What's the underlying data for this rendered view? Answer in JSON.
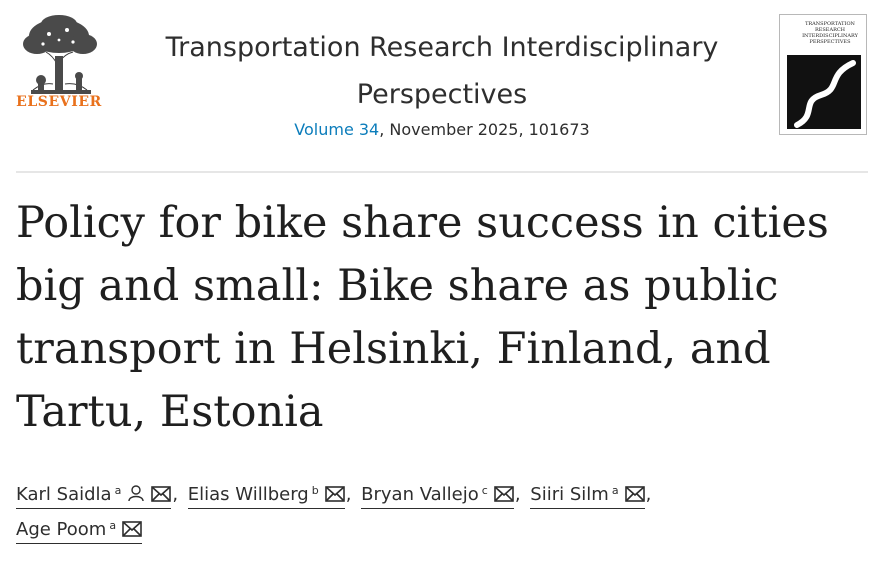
{
  "publisher": {
    "name": "ELSEVIER",
    "logo_icon": "elsevier-tree-icon",
    "brand_color": "#e9711c"
  },
  "journal": {
    "title": "Transportation Research Interdisciplinary Perspectives",
    "volume_link": "Volume 34",
    "issue_rest": ", November 2025, 101673",
    "link_color": "#0c7dbb",
    "cover": {
      "line1": "TRANSPORTATION",
      "line2": "RESEARCH",
      "line3": "INTERDISCIPLINARY",
      "line4": "PERSPECTIVES"
    }
  },
  "article": {
    "title": "Policy for bike share success in cities big and small: Bike share as public transport in Helsinki, Finland, and Tartu, Estonia"
  },
  "authors": [
    {
      "name": "Karl Saidla",
      "affiliation": "a",
      "icons": [
        "person-icon",
        "mail-icon"
      ]
    },
    {
      "name": "Elias Willberg",
      "affiliation": "b",
      "icons": [
        "mail-icon"
      ]
    },
    {
      "name": "Bryan Vallejo",
      "affiliation": "c",
      "icons": [
        "mail-icon"
      ]
    },
    {
      "name": "Siiri Silm",
      "affiliation": "a",
      "icons": [
        "mail-icon"
      ]
    },
    {
      "name": "Age Poom",
      "affiliation": "a",
      "icons": [
        "mail-icon"
      ]
    }
  ],
  "separator": ","
}
